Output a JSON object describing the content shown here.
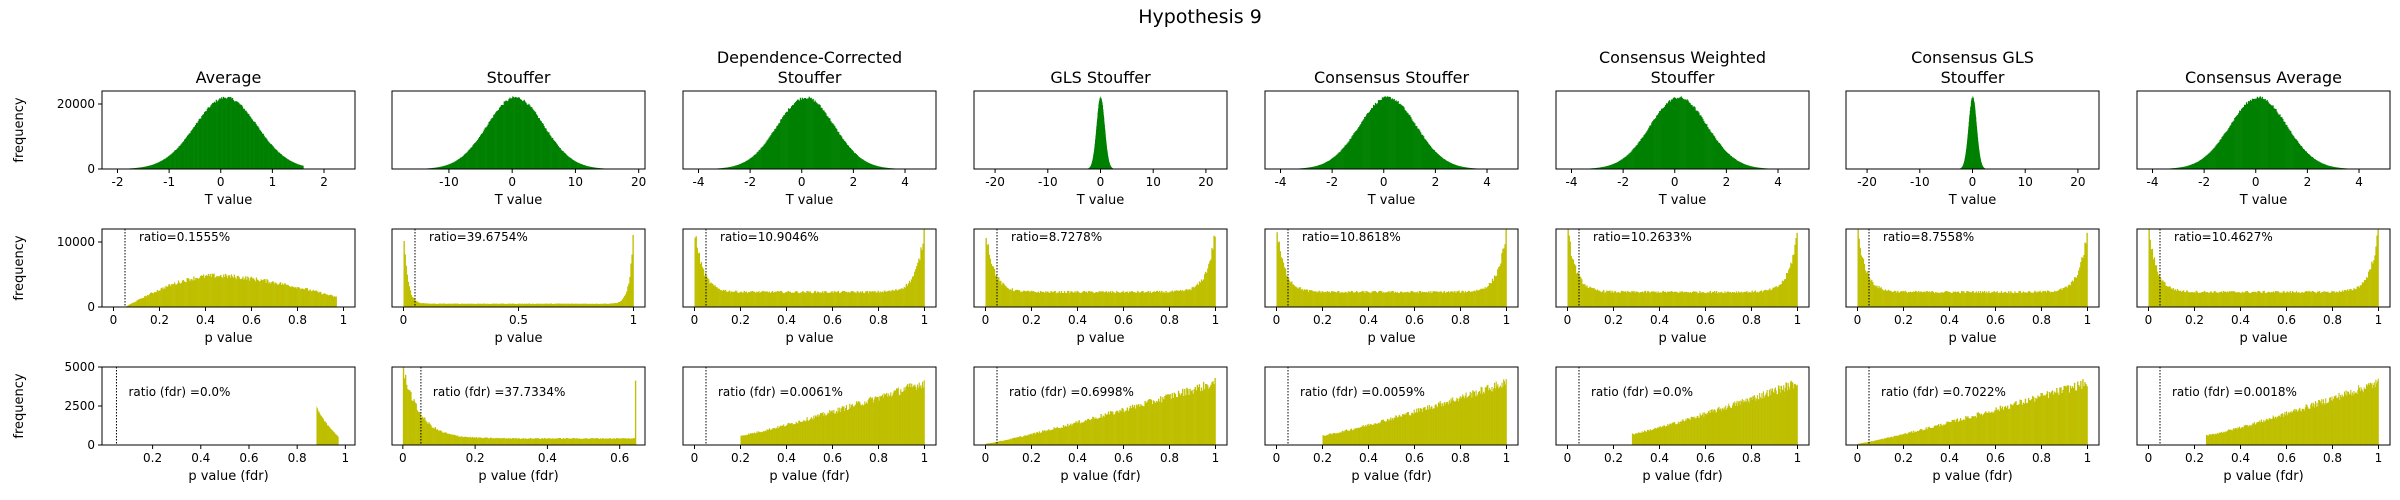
{
  "figure": {
    "title": "Hypothesis 9",
    "colors": {
      "t_hist": "#008000",
      "p_hist": "#bfbf00",
      "frame": "#000000"
    },
    "row_ylabels": [
      "frequency",
      "frequency",
      "frequency"
    ],
    "row_xlabels": [
      "T value",
      "p value",
      "p value (fdr)"
    ]
  },
  "chart_data": [
    {
      "type": "bar",
      "row": 0,
      "col": 0,
      "title": "Average",
      "xlabel": "T value",
      "ylabel": "frequency",
      "xlim": [
        -2.3,
        2.6
      ],
      "ylim": [
        0,
        24000
      ],
      "xticks": [
        -2,
        -1,
        0,
        1,
        2
      ],
      "yticks": [
        0,
        20000
      ],
      "shape": {
        "kind": "normal",
        "center": 0.1,
        "sigma": 0.6,
        "peak": 22000,
        "min": -1.9,
        "max": 1.6
      },
      "series_color": "#008000"
    },
    {
      "type": "bar",
      "row": 0,
      "col": 1,
      "title": "Stouffer",
      "xlabel": "T value",
      "ylabel": "",
      "xlim": [
        -19,
        21
      ],
      "ylim": [
        0,
        24000
      ],
      "xticks": [
        -10,
        0,
        10,
        20
      ],
      "yticks": [],
      "shape": {
        "kind": "normal",
        "center": 0.5,
        "sigma": 4.5,
        "peak": 22000,
        "min": -15,
        "max": 15
      },
      "series_color": "#008000"
    },
    {
      "type": "bar",
      "row": 0,
      "col": 2,
      "title": "Dependence-Corrected\nStouffer",
      "xlabel": "T value",
      "ylabel": "",
      "xlim": [
        -4.6,
        5.2
      ],
      "ylim": [
        0,
        24000
      ],
      "xticks": [
        -4,
        -2,
        0,
        2,
        4
      ],
      "yticks": [],
      "shape": {
        "kind": "normal",
        "center": 0.15,
        "sigma": 1.1,
        "peak": 22000,
        "min": -3.8,
        "max": 3.8
      },
      "series_color": "#008000"
    },
    {
      "type": "bar",
      "row": 0,
      "col": 3,
      "title": "GLS Stouffer",
      "xlabel": "T value",
      "ylabel": "",
      "xlim": [
        -24,
        24
      ],
      "ylim": [
        0,
        24000
      ],
      "xticks": [
        -20,
        -10,
        0,
        10,
        20
      ],
      "yticks": [],
      "shape": {
        "kind": "normal",
        "center": 0.0,
        "sigma": 0.75,
        "peak": 22000,
        "min": -4,
        "max": 4
      },
      "series_color": "#008000"
    },
    {
      "type": "bar",
      "row": 0,
      "col": 4,
      "title": "Consensus Stouffer",
      "xlabel": "T value",
      "ylabel": "",
      "xlim": [
        -4.6,
        5.2
      ],
      "ylim": [
        0,
        24000
      ],
      "xticks": [
        -4,
        -2,
        0,
        2,
        4
      ],
      "yticks": [],
      "shape": {
        "kind": "normal",
        "center": 0.15,
        "sigma": 1.1,
        "peak": 22000,
        "min": -3.8,
        "max": 3.8
      },
      "series_color": "#008000"
    },
    {
      "type": "bar",
      "row": 0,
      "col": 5,
      "title": "Consensus Weighted\nStouffer",
      "xlabel": "T value",
      "ylabel": "",
      "xlim": [
        -4.6,
        5.2
      ],
      "ylim": [
        0,
        24000
      ],
      "xticks": [
        -4,
        -2,
        0,
        2,
        4
      ],
      "yticks": [],
      "shape": {
        "kind": "normal",
        "center": 0.15,
        "sigma": 1.1,
        "peak": 22000,
        "min": -3.8,
        "max": 3.8
      },
      "series_color": "#008000"
    },
    {
      "type": "bar",
      "row": 0,
      "col": 6,
      "title": "Consensus GLS\nStouffer",
      "xlabel": "T value",
      "ylabel": "",
      "xlim": [
        -24,
        24
      ],
      "ylim": [
        0,
        24000
      ],
      "xticks": [
        -20,
        -10,
        0,
        10,
        20
      ],
      "yticks": [],
      "shape": {
        "kind": "normal",
        "center": 0.0,
        "sigma": 0.75,
        "peak": 22000,
        "min": -4,
        "max": 4
      },
      "series_color": "#008000"
    },
    {
      "type": "bar",
      "row": 0,
      "col": 7,
      "title": "Consensus Average",
      "xlabel": "T value",
      "ylabel": "",
      "xlim": [
        -4.6,
        5.2
      ],
      "ylim": [
        0,
        24000
      ],
      "xticks": [
        -4,
        -2,
        0,
        2,
        4
      ],
      "yticks": [],
      "shape": {
        "kind": "normal",
        "center": 0.1,
        "sigma": 1.1,
        "peak": 22000,
        "min": -3.8,
        "max": 3.8
      },
      "series_color": "#008000"
    },
    {
      "type": "bar",
      "row": 1,
      "col": 0,
      "title": "",
      "xlabel": "p value",
      "ylabel": "frequency",
      "xlim": [
        -0.05,
        1.05
      ],
      "ylim": [
        0,
        12000
      ],
      "xticks": [
        0.0,
        0.2,
        0.4,
        0.6,
        0.8,
        1.0
      ],
      "yticks": [
        0,
        10000
      ],
      "threshold": 0.05,
      "annotation": "ratio=0.1555%",
      "shape": {
        "kind": "hump",
        "start": 0.05,
        "end": 0.97,
        "peak_x": 0.45,
        "peak": 4800,
        "end_level": 1500
      },
      "series_color": "#bfbf00"
    },
    {
      "type": "bar",
      "row": 1,
      "col": 1,
      "title": "",
      "xlabel": "p value",
      "ylabel": "",
      "xlim": [
        -0.05,
        1.05
      ],
      "ylim": [
        0,
        12000
      ],
      "xticks": [
        0.0,
        0.5,
        1.0
      ],
      "yticks": [],
      "threshold": 0.05,
      "annotation": "ratio=39.6754%",
      "shape": {
        "kind": "u",
        "base": 500,
        "edge": 12000,
        "k": 60
      },
      "series_color": "#bfbf00"
    },
    {
      "type": "bar",
      "row": 1,
      "col": 2,
      "title": "",
      "xlabel": "p value",
      "ylabel": "",
      "xlim": [
        -0.05,
        1.05
      ],
      "ylim": [
        0,
        12000
      ],
      "xticks": [
        0.0,
        0.2,
        0.4,
        0.6,
        0.8,
        1.0
      ],
      "yticks": [],
      "threshold": 0.05,
      "annotation": "ratio=10.9046%",
      "shape": {
        "kind": "u",
        "base": 2300,
        "edge": 12000,
        "k": 28
      },
      "series_color": "#bfbf00"
    },
    {
      "type": "bar",
      "row": 1,
      "col": 3,
      "title": "",
      "xlabel": "p value",
      "ylabel": "",
      "xlim": [
        -0.05,
        1.05
      ],
      "ylim": [
        0,
        12000
      ],
      "xticks": [
        0.0,
        0.2,
        0.4,
        0.6,
        0.8,
        1.0
      ],
      "yticks": [],
      "threshold": 0.05,
      "annotation": "ratio=8.7278%",
      "shape": {
        "kind": "u",
        "base": 2300,
        "edge": 12000,
        "k": 28
      },
      "series_color": "#bfbf00"
    },
    {
      "type": "bar",
      "row": 1,
      "col": 4,
      "title": "",
      "xlabel": "p value",
      "ylabel": "",
      "xlim": [
        -0.05,
        1.05
      ],
      "ylim": [
        0,
        12000
      ],
      "xticks": [
        0.0,
        0.2,
        0.4,
        0.6,
        0.8,
        1.0
      ],
      "yticks": [],
      "threshold": 0.05,
      "annotation": "ratio=10.8618%",
      "shape": {
        "kind": "u",
        "base": 2300,
        "edge": 12000,
        "k": 28
      },
      "series_color": "#bfbf00"
    },
    {
      "type": "bar",
      "row": 1,
      "col": 5,
      "title": "",
      "xlabel": "p value",
      "ylabel": "",
      "xlim": [
        -0.05,
        1.05
      ],
      "ylim": [
        0,
        12000
      ],
      "xticks": [
        0.0,
        0.2,
        0.4,
        0.6,
        0.8,
        1.0
      ],
      "yticks": [],
      "threshold": 0.05,
      "annotation": "ratio=10.2633%",
      "shape": {
        "kind": "u",
        "base": 2300,
        "edge": 12000,
        "k": 28
      },
      "series_color": "#bfbf00"
    },
    {
      "type": "bar",
      "row": 1,
      "col": 6,
      "title": "",
      "xlabel": "p value",
      "ylabel": "",
      "xlim": [
        -0.05,
        1.05
      ],
      "ylim": [
        0,
        12000
      ],
      "xticks": [
        0.0,
        0.2,
        0.4,
        0.6,
        0.8,
        1.0
      ],
      "yticks": [],
      "threshold": 0.05,
      "annotation": "ratio=8.7558%",
      "shape": {
        "kind": "u",
        "base": 2300,
        "edge": 12000,
        "k": 28
      },
      "series_color": "#bfbf00"
    },
    {
      "type": "bar",
      "row": 1,
      "col": 7,
      "title": "",
      "xlabel": "p value",
      "ylabel": "",
      "xlim": [
        -0.05,
        1.05
      ],
      "ylim": [
        0,
        12000
      ],
      "xticks": [
        0.0,
        0.2,
        0.4,
        0.6,
        0.8,
        1.0
      ],
      "yticks": [],
      "threshold": 0.05,
      "annotation": "ratio=10.4627%",
      "shape": {
        "kind": "u",
        "base": 2300,
        "edge": 12000,
        "k": 28
      },
      "series_color": "#bfbf00"
    },
    {
      "type": "bar",
      "row": 2,
      "col": 0,
      "title": "",
      "xlabel": "p value (fdr)",
      "ylabel": "frequency",
      "xlim": [
        -0.01,
        1.04
      ],
      "ylim": [
        0,
        5000
      ],
      "xticks": [
        0.2,
        0.4,
        0.6,
        0.8,
        1.0
      ],
      "yticks": [
        0,
        2500,
        5000
      ],
      "threshold": 0.05,
      "annotation": "ratio (fdr) =0.0%",
      "shape": {
        "kind": "spike",
        "start": 0.88,
        "end": 0.97,
        "peak": 2400,
        "tail": 500
      },
      "series_color": "#bfbf00"
    },
    {
      "type": "bar",
      "row": 2,
      "col": 1,
      "title": "",
      "xlabel": "p value (fdr)",
      "ylabel": "",
      "xlim": [
        -0.03,
        0.67
      ],
      "ylim": [
        0,
        5000
      ],
      "xticks": [
        0.0,
        0.2,
        0.4,
        0.6
      ],
      "yticks": [],
      "threshold": 0.05,
      "annotation": "ratio (fdr) =37.7334%",
      "shape": {
        "kind": "decay",
        "start": 0.0,
        "end": 0.645,
        "top": 5000,
        "base": 420,
        "k": 22,
        "end_spike": 4000
      },
      "series_color": "#bfbf00"
    },
    {
      "type": "bar",
      "row": 2,
      "col": 2,
      "title": "",
      "xlabel": "p value (fdr)",
      "ylabel": "",
      "xlim": [
        -0.05,
        1.05
      ],
      "ylim": [
        0,
        5000
      ],
      "xticks": [
        0.0,
        0.2,
        0.4,
        0.6,
        0.8,
        1.0
      ],
      "yticks": [],
      "threshold": 0.05,
      "annotation": "ratio (fdr) =0.0061%",
      "shape": {
        "kind": "ramp",
        "start": 0.2,
        "end": 1.0,
        "y0": 600,
        "y1": 4000
      },
      "series_color": "#bfbf00"
    },
    {
      "type": "bar",
      "row": 2,
      "col": 3,
      "title": "",
      "xlabel": "p value (fdr)",
      "ylabel": "",
      "xlim": [
        -0.05,
        1.05
      ],
      "ylim": [
        0,
        5000
      ],
      "xticks": [
        0.0,
        0.2,
        0.4,
        0.6,
        0.8,
        1.0
      ],
      "yticks": [],
      "threshold": 0.05,
      "annotation": "ratio (fdr) =0.6998%",
      "shape": {
        "kind": "ramp",
        "start": 0.0,
        "end": 1.0,
        "y0": 80,
        "y1": 4000
      },
      "series_color": "#bfbf00"
    },
    {
      "type": "bar",
      "row": 2,
      "col": 4,
      "title": "",
      "xlabel": "p value (fdr)",
      "ylabel": "",
      "xlim": [
        -0.05,
        1.05
      ],
      "ylim": [
        0,
        5000
      ],
      "xticks": [
        0.0,
        0.2,
        0.4,
        0.6,
        0.8,
        1.0
      ],
      "yticks": [],
      "threshold": 0.05,
      "annotation": "ratio (fdr) =0.0059%",
      "shape": {
        "kind": "ramp",
        "start": 0.2,
        "end": 1.0,
        "y0": 600,
        "y1": 4000
      },
      "series_color": "#bfbf00"
    },
    {
      "type": "bar",
      "row": 2,
      "col": 5,
      "title": "",
      "xlabel": "p value (fdr)",
      "ylabel": "",
      "xlim": [
        -0.05,
        1.05
      ],
      "ylim": [
        0,
        5000
      ],
      "xticks": [
        0.0,
        0.2,
        0.4,
        0.6,
        0.8,
        1.0
      ],
      "yticks": [],
      "threshold": 0.05,
      "annotation": "ratio (fdr) =0.0%",
      "shape": {
        "kind": "ramp",
        "start": 0.28,
        "end": 1.0,
        "y0": 700,
        "y1": 4000
      },
      "series_color": "#bfbf00"
    },
    {
      "type": "bar",
      "row": 2,
      "col": 6,
      "title": "",
      "xlabel": "p value (fdr)",
      "ylabel": "",
      "xlim": [
        -0.05,
        1.05
      ],
      "ylim": [
        0,
        5000
      ],
      "xticks": [
        0.0,
        0.2,
        0.4,
        0.6,
        0.8,
        1.0
      ],
      "yticks": [],
      "threshold": 0.05,
      "annotation": "ratio (fdr) =0.7022%",
      "shape": {
        "kind": "ramp",
        "start": 0.0,
        "end": 1.0,
        "y0": 80,
        "y1": 4000
      },
      "series_color": "#bfbf00"
    },
    {
      "type": "bar",
      "row": 2,
      "col": 7,
      "title": "",
      "xlabel": "p value (fdr)",
      "ylabel": "",
      "xlim": [
        -0.05,
        1.05
      ],
      "ylim": [
        0,
        5000
      ],
      "xticks": [
        0.0,
        0.2,
        0.4,
        0.6,
        0.8,
        1.0
      ],
      "yticks": [],
      "threshold": 0.05,
      "annotation": "ratio (fdr) =0.0018%",
      "shape": {
        "kind": "ramp",
        "start": 0.25,
        "end": 1.0,
        "y0": 600,
        "y1": 4000
      },
      "series_color": "#bfbf00"
    }
  ]
}
